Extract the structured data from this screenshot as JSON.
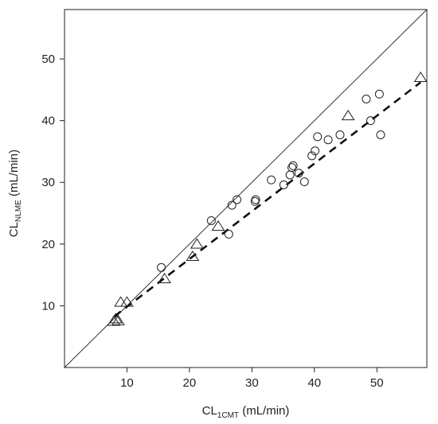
{
  "chart_data": {
    "type": "scatter",
    "title": "",
    "xlabel": {
      "main": "CL",
      "sub": "1CMT",
      "suffix": " (mL/min)"
    },
    "ylabel": {
      "main": "CL",
      "sub": "NLME",
      "suffix": " (mL/min)"
    },
    "xlim": [
      0,
      58
    ],
    "ylim": [
      0,
      58
    ],
    "xticks": [
      10,
      20,
      30,
      40,
      50
    ],
    "yticks": [
      10,
      20,
      30,
      40,
      50
    ],
    "grid": false,
    "legend": "none",
    "series": [
      {
        "marker": "circle",
        "points": [
          [
            15.5,
            16.2
          ],
          [
            23.5,
            23.8
          ],
          [
            26.3,
            21.6
          ],
          [
            26.8,
            26.3
          ],
          [
            27.6,
            27.2
          ],
          [
            30.5,
            26.9
          ],
          [
            30.6,
            27.2
          ],
          [
            33.1,
            30.4
          ],
          [
            35.1,
            29.6
          ],
          [
            36.1,
            31.2
          ],
          [
            36.4,
            32.4
          ],
          [
            36.6,
            32.7
          ],
          [
            37.5,
            31.5
          ],
          [
            38.4,
            30.1
          ],
          [
            39.6,
            34.3
          ],
          [
            40.1,
            35.1
          ],
          [
            40.5,
            37.4
          ],
          [
            42.2,
            36.9
          ],
          [
            44.1,
            37.7
          ],
          [
            48.3,
            43.5
          ],
          [
            49.0,
            40.0
          ],
          [
            50.4,
            44.3
          ],
          [
            50.6,
            37.7
          ]
        ]
      },
      {
        "marker": "triangle",
        "points": [
          [
            7.9,
            7.5
          ],
          [
            8.2,
            7.9
          ],
          [
            8.6,
            7.6
          ],
          [
            9.0,
            10.6
          ],
          [
            10.0,
            10.6
          ],
          [
            16.0,
            14.4
          ],
          [
            20.5,
            18.0
          ],
          [
            21.2,
            20.0
          ],
          [
            24.6,
            22.9
          ],
          [
            45.4,
            40.8
          ],
          [
            57.0,
            47.0
          ]
        ]
      }
    ],
    "identity_line": {
      "style": "solid",
      "from": [
        0,
        0
      ],
      "to": [
        58,
        58
      ]
    },
    "fit_line": {
      "style": "dashed",
      "from": [
        8.0,
        8.3
      ],
      "to": [
        57.0,
        46.2
      ]
    }
  }
}
